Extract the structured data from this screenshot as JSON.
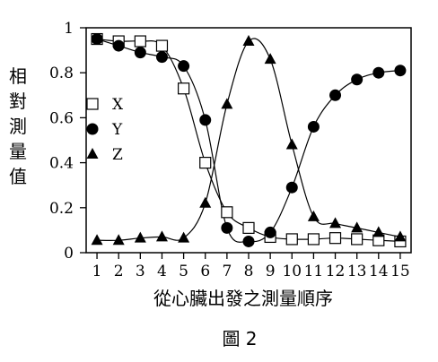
{
  "chart_data": {
    "type": "scatter",
    "x": [
      1,
      2,
      3,
      4,
      5,
      6,
      7,
      8,
      9,
      10,
      11,
      12,
      13,
      14,
      15
    ],
    "series": [
      {
        "name": "X",
        "marker": "open-square",
        "values": [
          0.95,
          0.94,
          0.94,
          0.92,
          0.73,
          0.4,
          0.18,
          0.11,
          0.07,
          0.06,
          0.06,
          0.065,
          0.06,
          0.055,
          0.05
        ]
      },
      {
        "name": "Y",
        "marker": "filled-circle",
        "values": [
          0.95,
          0.92,
          0.89,
          0.87,
          0.83,
          0.59,
          0.11,
          0.05,
          0.09,
          0.29,
          0.56,
          0.7,
          0.77,
          0.8,
          0.81
        ]
      },
      {
        "name": "Z",
        "marker": "filled-triangle",
        "values": [
          0.055,
          0.055,
          0.065,
          0.07,
          0.065,
          0.22,
          0.66,
          0.94,
          0.86,
          0.48,
          0.16,
          0.13,
          0.11,
          0.09,
          0.07
        ]
      }
    ],
    "xlabel": "從心臟出發之測量順序",
    "ylabel": "相對測量值",
    "caption": "圖 2",
    "ylim": [
      0,
      1
    ],
    "xlim": [
      0.5,
      15.5
    ],
    "yticks": [
      "0",
      "0.2",
      "0.4",
      "0.6",
      "0.8",
      "1"
    ],
    "xticks": [
      "1",
      "2",
      "3",
      "4",
      "5",
      "6",
      "7",
      "8",
      "9",
      "10",
      "11",
      "12",
      "13",
      "14",
      "15"
    ],
    "legend_position": "left-middle",
    "grid": false
  }
}
